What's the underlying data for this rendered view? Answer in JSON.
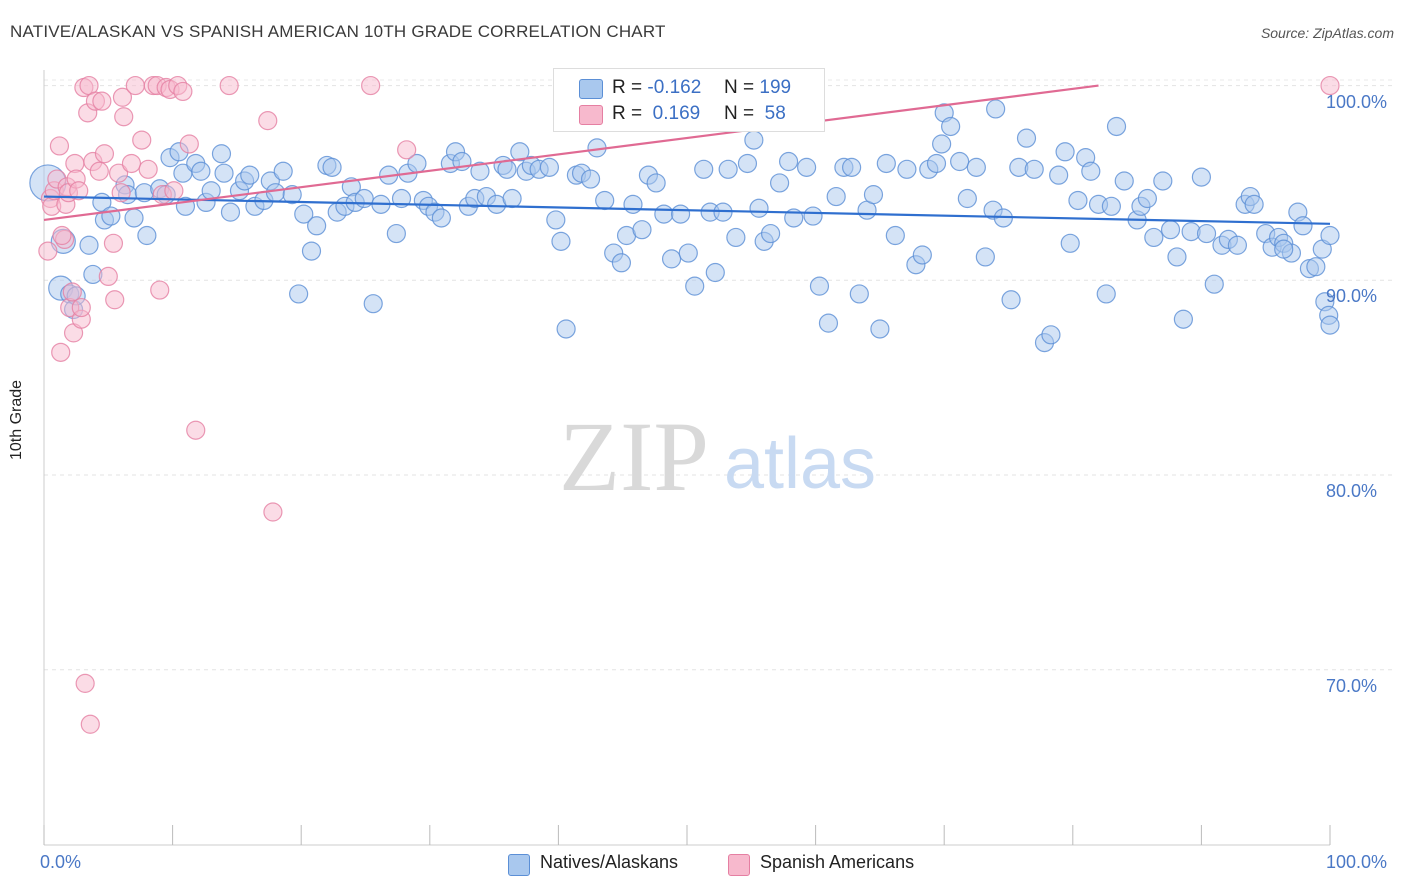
{
  "title": "NATIVE/ALASKAN VS SPANISH AMERICAN 10TH GRADE CORRELATION CHART",
  "source": "Source: ZipAtlas.com",
  "watermark": {
    "zip": "ZIP",
    "atlas": "atlas"
  },
  "colors": {
    "blue_fill": "#a9c8ee",
    "blue_stroke": "#5b8fd6",
    "blue_line": "#2f6fcf",
    "pink_fill": "#f7b9cd",
    "pink_stroke": "#e57fa2",
    "pink_line": "#e06a93",
    "axis_text": "#4a78c6"
  },
  "legend": {
    "series1": {
      "r_label": "R =",
      "r_value": "-0.162",
      "n_label": "N =",
      "n_value": "199"
    },
    "series2": {
      "r_label": "R =",
      "r_value": " 0.169",
      "n_label": "N =",
      "n_value": " 58"
    }
  },
  "bottom_legend": {
    "series1": "Natives/Alaskans",
    "series2": "Spanish Americans"
  },
  "chart_data": {
    "type": "scatter",
    "title": "NATIVE/ALASKAN VS SPANISH AMERICAN 10TH GRADE CORRELATION CHART",
    "xlabel": "",
    "ylabel": "10th Grade",
    "xlim": [
      0,
      100
    ],
    "ylim": [
      61,
      100.8
    ],
    "x_tick_labels": [
      "0.0%",
      "100.0%"
    ],
    "y_ticks": [
      70,
      80,
      90,
      100
    ],
    "y_tick_labels": [
      "70.0%",
      "80.0%",
      "90.0%",
      "100.0%"
    ],
    "grid": true,
    "legend_position": "top-center",
    "series": [
      {
        "name": "Natives/Alaskans",
        "color": "#a9c8ee",
        "trend": {
          "x": [
            0,
            100
          ],
          "y": [
            94.3,
            92.9
          ]
        },
        "points": [
          [
            0.3,
            95
          ],
          [
            1.3,
            89.6
          ],
          [
            1.5,
            92
          ],
          [
            2,
            89.3
          ],
          [
            2.3,
            88.5
          ],
          [
            2.5,
            89.2
          ],
          [
            3.5,
            91.8
          ],
          [
            3.8,
            90.3
          ],
          [
            4.5,
            94
          ],
          [
            4.7,
            93.1
          ],
          [
            5.2,
            93.3
          ],
          [
            6.3,
            94.9
          ],
          [
            6.5,
            94.4
          ],
          [
            7,
            93.2
          ],
          [
            7.8,
            94.5
          ],
          [
            8,
            92.3
          ],
          [
            9,
            94.7
          ],
          [
            9.5,
            94.4
          ],
          [
            9.8,
            96.3
          ],
          [
            10.5,
            96.6
          ],
          [
            10.8,
            95.5
          ],
          [
            11,
            93.8
          ],
          [
            11.8,
            96
          ],
          [
            12.2,
            95.6
          ],
          [
            12.6,
            94
          ],
          [
            13,
            94.6
          ],
          [
            13.8,
            96.5
          ],
          [
            14,
            95.5
          ],
          [
            14.5,
            93.5
          ],
          [
            15.2,
            94.6
          ],
          [
            15.6,
            95.1
          ],
          [
            16,
            95.4
          ],
          [
            16.4,
            93.8
          ],
          [
            17.1,
            94.1
          ],
          [
            17.6,
            95.1
          ],
          [
            18,
            94.5
          ],
          [
            18.6,
            95.6
          ],
          [
            19.3,
            94.4
          ],
          [
            19.8,
            89.3
          ],
          [
            20.2,
            93.4
          ],
          [
            20.8,
            91.5
          ],
          [
            21.2,
            92.8
          ],
          [
            22,
            95.9
          ],
          [
            22.4,
            95.8
          ],
          [
            22.8,
            93.5
          ],
          [
            23.4,
            93.8
          ],
          [
            23.9,
            94.8
          ],
          [
            24.2,
            94
          ],
          [
            24.9,
            94.2
          ],
          [
            25.6,
            88.8
          ],
          [
            26.2,
            93.9
          ],
          [
            26.8,
            95.4
          ],
          [
            27.4,
            92.4
          ],
          [
            27.8,
            94.2
          ],
          [
            28.3,
            95.5
          ],
          [
            29,
            96
          ],
          [
            29.5,
            94.1
          ],
          [
            29.9,
            93.8
          ],
          [
            30.4,
            93.5
          ],
          [
            30.9,
            93.2
          ],
          [
            31.6,
            96
          ],
          [
            32,
            96.6
          ],
          [
            32.5,
            96.1
          ],
          [
            33,
            93.8
          ],
          [
            33.5,
            94.2
          ],
          [
            33.9,
            95.6
          ],
          [
            34.4,
            94.3
          ],
          [
            35.2,
            93.9
          ],
          [
            35.7,
            95.9
          ],
          [
            36,
            95.7
          ],
          [
            36.4,
            94.2
          ],
          [
            37,
            96.6
          ],
          [
            37.5,
            95.6
          ],
          [
            37.9,
            95.9
          ],
          [
            38.5,
            95.7
          ],
          [
            39.3,
            95.8
          ],
          [
            39.8,
            93.1
          ],
          [
            40.2,
            92
          ],
          [
            40.6,
            87.5
          ],
          [
            41.4,
            95.4
          ],
          [
            41.8,
            95.5
          ],
          [
            42.5,
            95.2
          ],
          [
            43,
            96.8
          ],
          [
            43.6,
            94.1
          ],
          [
            44.3,
            91.4
          ],
          [
            44.9,
            90.9
          ],
          [
            45.3,
            92.3
          ],
          [
            45.8,
            93.9
          ],
          [
            46.5,
            92.6
          ],
          [
            47,
            95.4
          ],
          [
            47.6,
            95
          ],
          [
            48.2,
            93.4
          ],
          [
            48.8,
            91.1
          ],
          [
            49.5,
            93.4
          ],
          [
            50.1,
            91.4
          ],
          [
            50.6,
            89.7
          ],
          [
            51.3,
            95.7
          ],
          [
            51.8,
            93.5
          ],
          [
            52.2,
            90.4
          ],
          [
            52.8,
            93.5
          ],
          [
            53.2,
            95.7
          ],
          [
            53.8,
            92.2
          ],
          [
            54.7,
            96
          ],
          [
            55.2,
            97.2
          ],
          [
            55.6,
            93.7
          ],
          [
            56,
            92
          ],
          [
            56.5,
            92.4
          ],
          [
            57.2,
            95
          ],
          [
            57.9,
            96.1
          ],
          [
            58.3,
            93.2
          ],
          [
            58.8,
            98.8
          ],
          [
            59.3,
            95.8
          ],
          [
            59.8,
            93.3
          ],
          [
            60.3,
            89.7
          ],
          [
            61,
            87.8
          ],
          [
            61.6,
            94.3
          ],
          [
            62.2,
            95.8
          ],
          [
            62.8,
            95.8
          ],
          [
            63.4,
            89.3
          ],
          [
            64,
            93.6
          ],
          [
            64.5,
            94.4
          ],
          [
            65,
            87.5
          ],
          [
            65.5,
            96
          ],
          [
            66.2,
            92.3
          ],
          [
            67.1,
            95.7
          ],
          [
            67.8,
            90.8
          ],
          [
            68.3,
            91.3
          ],
          [
            68.8,
            95.7
          ],
          [
            69.4,
            96
          ],
          [
            69.8,
            97
          ],
          [
            70,
            98.6
          ],
          [
            70.5,
            97.9
          ],
          [
            71.2,
            96.1
          ],
          [
            71.8,
            94.2
          ],
          [
            72.5,
            95.8
          ],
          [
            73.2,
            91.2
          ],
          [
            73.8,
            93.6
          ],
          [
            74,
            98.8
          ],
          [
            74.6,
            93.2
          ],
          [
            75.2,
            89
          ],
          [
            75.8,
            95.8
          ],
          [
            76.4,
            97.3
          ],
          [
            77,
            95.7
          ],
          [
            77.8,
            86.8
          ],
          [
            78.3,
            87.2
          ],
          [
            78.9,
            95.4
          ],
          [
            79.4,
            96.6
          ],
          [
            79.8,
            91.9
          ],
          [
            80.4,
            94.1
          ],
          [
            81,
            96.3
          ],
          [
            81.4,
            95.6
          ],
          [
            82,
            93.9
          ],
          [
            82.6,
            89.3
          ],
          [
            83,
            93.8
          ],
          [
            83.4,
            97.9
          ],
          [
            84,
            95.1
          ],
          [
            85,
            93.1
          ],
          [
            85.3,
            93.8
          ],
          [
            85.8,
            94.2
          ],
          [
            86.3,
            92.2
          ],
          [
            87,
            95.1
          ],
          [
            87.6,
            92.6
          ],
          [
            88.1,
            91.2
          ],
          [
            88.6,
            88
          ],
          [
            89.2,
            92.5
          ],
          [
            90,
            95.3
          ],
          [
            90.4,
            92.4
          ],
          [
            91,
            89.8
          ],
          [
            91.6,
            91.8
          ],
          [
            92.1,
            92.1
          ],
          [
            92.8,
            91.8
          ],
          [
            93.4,
            93.9
          ],
          [
            93.8,
            94.3
          ],
          [
            94.1,
            93.9
          ],
          [
            95,
            92.4
          ],
          [
            95.5,
            91.7
          ],
          [
            96,
            92.2
          ],
          [
            96.4,
            91.9
          ],
          [
            97,
            91.4
          ],
          [
            97.5,
            93.5
          ],
          [
            97.9,
            92.8
          ],
          [
            98.4,
            90.6
          ],
          [
            98.9,
            90.7
          ],
          [
            99.4,
            91.6
          ],
          [
            99.6,
            88.9
          ],
          [
            99.9,
            88.2
          ],
          [
            100,
            87.7
          ],
          [
            100,
            92.3
          ],
          [
            96.4,
            91.6
          ]
        ]
      },
      {
        "name": "Spanish Americans",
        "color": "#f7b9cd",
        "trend": {
          "x": [
            0,
            82
          ],
          "y": [
            93.1,
            100
          ]
        },
        "points": [
          [
            0.3,
            91.5
          ],
          [
            0.5,
            94.2
          ],
          [
            0.6,
            93.8
          ],
          [
            0.8,
            94.6
          ],
          [
            1,
            95.2
          ],
          [
            1.2,
            96.9
          ],
          [
            1.3,
            86.3
          ],
          [
            1.6,
            92.1
          ],
          [
            1.7,
            93.9
          ],
          [
            1.8,
            94.8
          ],
          [
            1.9,
            94.5
          ],
          [
            2,
            88.6
          ],
          [
            2.2,
            89.4
          ],
          [
            2.3,
            87.3
          ],
          [
            2.4,
            96
          ],
          [
            2.5,
            95.2
          ],
          [
            2.7,
            94.6
          ],
          [
            2.9,
            88
          ],
          [
            3.1,
            99.9
          ],
          [
            3.2,
            69.3
          ],
          [
            3.4,
            98.6
          ],
          [
            3.5,
            100
          ],
          [
            3.6,
            67.2
          ],
          [
            3.8,
            96.1
          ],
          [
            4,
            99.2
          ],
          [
            4.3,
            95.6
          ],
          [
            4.5,
            99.2
          ],
          [
            4.7,
            96.5
          ],
          [
            5,
            90.2
          ],
          [
            5.4,
            91.9
          ],
          [
            5.5,
            89
          ],
          [
            5.8,
            95.5
          ],
          [
            6,
            94.5
          ],
          [
            6.1,
            99.4
          ],
          [
            6.2,
            98.4
          ],
          [
            6.8,
            96
          ],
          [
            7.1,
            100
          ],
          [
            7.6,
            97.2
          ],
          [
            8.1,
            95.7
          ],
          [
            8.5,
            100
          ],
          [
            8.8,
            100
          ],
          [
            9,
            89.5
          ],
          [
            9.2,
            94.4
          ],
          [
            9.5,
            99.9
          ],
          [
            9.8,
            99.8
          ],
          [
            10.1,
            94.6
          ],
          [
            10.4,
            100
          ],
          [
            10.8,
            99.7
          ],
          [
            11.3,
            97
          ],
          [
            11.8,
            82.3
          ],
          [
            14.4,
            100
          ],
          [
            17.4,
            98.2
          ],
          [
            17.8,
            78.1
          ],
          [
            25.4,
            100
          ],
          [
            28.2,
            96.7
          ],
          [
            100,
            100
          ],
          [
            1.4,
            92.3
          ],
          [
            2.9,
            88.6
          ]
        ]
      }
    ]
  }
}
